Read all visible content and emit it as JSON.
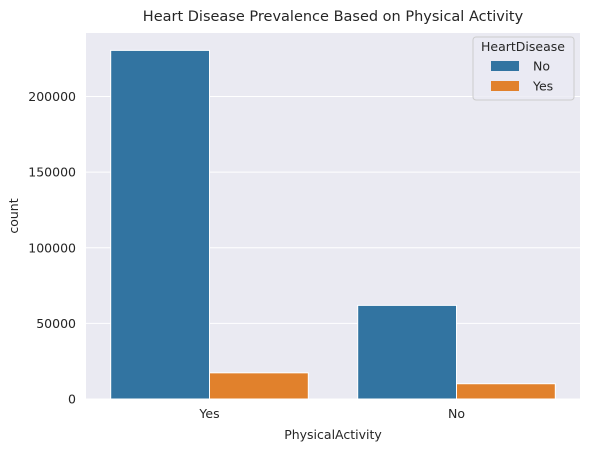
{
  "chart_data": {
    "type": "bar",
    "title": "Heart Disease Prevalence Based on Physical Activity",
    "xlabel": "PhysicalActivity",
    "ylabel": "count",
    "categories": [
      "Yes",
      "No"
    ],
    "series": [
      {
        "name": "No",
        "color": "#3274a1",
        "values": [
          230500,
          61900
        ]
      },
      {
        "name": "Yes",
        "color": "#e1812c",
        "values": [
          17300,
          10100
        ]
      }
    ],
    "ylim": [
      0,
      242000
    ],
    "yticks": [
      0,
      50000,
      100000,
      150000,
      200000
    ],
    "ytick_labels": [
      "0",
      "50000",
      "100000",
      "150000",
      "200000"
    ],
    "grid": true,
    "legend": {
      "title": "HeartDisease",
      "placement": "top-right"
    }
  }
}
